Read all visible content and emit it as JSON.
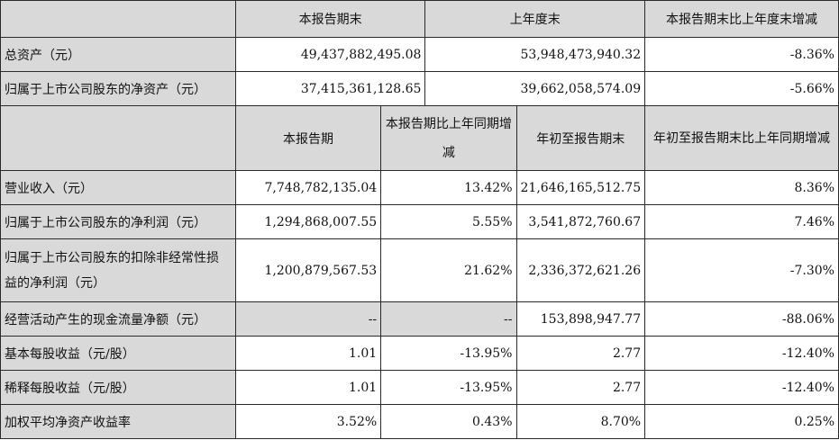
{
  "top_table": {
    "headers": [
      "",
      "本报告期末",
      "上年度末",
      "本报告期末比上年度末增减"
    ],
    "rows": [
      {
        "label": "总资产（元）",
        "values": [
          "49,437,882,495.08",
          "53,948,473,940.32",
          "-8.36%"
        ]
      },
      {
        "label": "归属于上市公司股东的净资产（元）",
        "values": [
          "37,415,361,128.65",
          "39,662,058,574.09",
          "-5.66%"
        ]
      }
    ]
  },
  "bottom_table": {
    "headers": [
      "",
      "本报告期",
      "本报告期比上年同期增减",
      "年初至报告期末",
      "年初至报告期末比上年同期增减"
    ],
    "rows": [
      {
        "label": "营业收入（元）",
        "values": [
          "7,748,782,135.04",
          "13.42%",
          "21,646,165,512.75",
          "8.36%"
        ]
      },
      {
        "label": "归属于上市公司股东的净利润（元）",
        "values": [
          "1,294,868,007.55",
          "5.55%",
          "3,541,872,760.67",
          "7.46%"
        ]
      },
      {
        "label": "归属于上市公司股东的扣除非经常性损益的净利润（元）",
        "values": [
          "1,200,879,567.53",
          "21.62%",
          "2,336,372,621.26",
          "-7.30%"
        ]
      },
      {
        "label": "经营活动产生的现金流量净额（元）",
        "values": [
          "--",
          "--",
          "153,898,947.77",
          "-88.06%"
        ]
      },
      {
        "label": "基本每股收益（元/股）",
        "values": [
          "1.01",
          "-13.95%",
          "2.77",
          "-12.40%"
        ]
      },
      {
        "label": "稀释每股收益（元/股）",
        "values": [
          "1.01",
          "-13.95%",
          "2.77",
          "-12.40%"
        ]
      },
      {
        "label": "加权平均净资产收益率",
        "values": [
          "3.52%",
          "0.43%",
          "8.70%",
          "0.25%"
        ]
      }
    ]
  }
}
